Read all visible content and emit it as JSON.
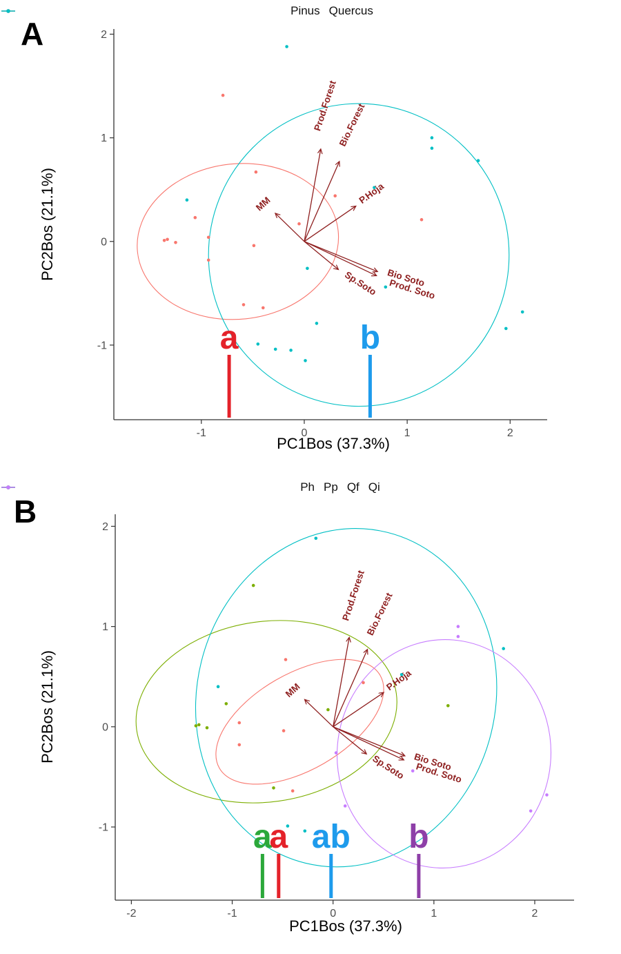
{
  "figure": {
    "panel_a_label": "A",
    "panel_b_label": "B",
    "loadings_color": "#8e1f1f",
    "axis_line_color": "#333333",
    "tick_text_color": "#4d4d4d"
  },
  "chart_data": [
    {
      "type": "scatter",
      "panel_label": "A",
      "xlabel": "PC1Bos (37.3%)",
      "ylabel": "PC2Bos (21.1%)",
      "xlim": [
        -1.85,
        2.36
      ],
      "ylim": [
        -1.72,
        2.05
      ],
      "xticks": [
        -1,
        0,
        1,
        2
      ],
      "yticks": [
        2,
        1,
        0,
        -1
      ],
      "grid": false,
      "legend_position": "top-center",
      "series": [
        {
          "name": "Pinus",
          "color": "#F8766D",
          "points": [
            [
              -0.79,
              1.41
            ],
            [
              -0.47,
              0.67
            ],
            [
              -1.06,
              0.23
            ],
            [
              -1.36,
              0.01
            ],
            [
              -1.33,
              0.02
            ],
            [
              -1.25,
              -0.01
            ],
            [
              -0.93,
              0.04
            ],
            [
              -0.49,
              -0.04
            ],
            [
              -0.05,
              0.17
            ],
            [
              -0.93,
              -0.18
            ],
            [
              0.3,
              0.44
            ],
            [
              1.14,
              0.21
            ],
            [
              -0.59,
              -0.61
            ],
            [
              -0.4,
              -0.64
            ]
          ]
        },
        {
          "name": "Quercus",
          "color": "#00BFC4",
          "points": [
            [
              -0.17,
              1.88
            ],
            [
              -1.14,
              0.4
            ],
            [
              0.03,
              -0.26
            ],
            [
              1.24,
              1.0
            ],
            [
              1.24,
              0.9
            ],
            [
              1.69,
              0.78
            ],
            [
              0.68,
              0.52
            ],
            [
              0.79,
              -0.44
            ],
            [
              2.12,
              -0.68
            ],
            [
              1.96,
              -0.84
            ],
            [
              0.12,
              -0.79
            ],
            [
              -0.45,
              -0.99
            ],
            [
              -0.28,
              -1.04
            ],
            [
              -0.13,
              -1.05
            ],
            [
              0.01,
              -1.15
            ]
          ]
        }
      ],
      "ellipses": [
        {
          "group": "Pinus",
          "color": "#F8766D",
          "cx": -0.645,
          "cy": 0.0,
          "rx": 0.98,
          "ry": 0.75,
          "rot": -6
        },
        {
          "group": "Quercus",
          "color": "#00BFC4",
          "cx": 0.53,
          "cy": -0.13,
          "rx": 1.46,
          "ry": 1.46,
          "rot": 0
        }
      ],
      "loadings": [
        {
          "label": "Prod.Forest",
          "x": 0.16,
          "y": 0.89,
          "lx": 0.23,
          "ly": 1.3,
          "rot": 72
        },
        {
          "label": "Bio.Forest",
          "x": 0.34,
          "y": 0.77,
          "lx": 0.49,
          "ly": 1.11,
          "rot": 64
        },
        {
          "label": "P.Hoja",
          "x": 0.5,
          "y": 0.34,
          "lx": 0.67,
          "ly": 0.44,
          "rot": 36
        },
        {
          "label": "MM",
          "x": -0.28,
          "y": 0.27,
          "lx": -0.38,
          "ly": 0.34,
          "rot": 42
        },
        {
          "label": "Sp.Soto",
          "x": 0.33,
          "y": -0.27,
          "lx": 0.53,
          "ly": -0.43,
          "rot": -33
        },
        {
          "label": "Bio Soto",
          "x": 0.71,
          "y": -0.29,
          "lx": 0.98,
          "ly": -0.38,
          "rot": -17
        },
        {
          "label": "Prod. Soto",
          "x": 0.7,
          "y": -0.33,
          "lx": 1.04,
          "ly": -0.49,
          "rot": -17
        }
      ],
      "letters": [
        {
          "text": "a",
          "color": "#e4222a",
          "x": -0.73
        },
        {
          "text": "b",
          "color": "#1e9bec",
          "x": 0.64
        }
      ]
    },
    {
      "type": "scatter",
      "panel_label": "B",
      "xlabel": "PC1Bos (37.3%)",
      "ylabel": "PC2Bos (21.1%)",
      "xlim": [
        -2.16,
        2.39
      ],
      "ylim": [
        -1.73,
        2.12
      ],
      "xticks": [
        -2,
        -1,
        0,
        1,
        2
      ],
      "yticks": [
        2,
        1,
        0,
        -1
      ],
      "grid": false,
      "legend_position": "top-center",
      "series": [
        {
          "name": "Ph",
          "color": "#F8766D",
          "points": [
            [
              -0.47,
              0.67
            ],
            [
              -0.93,
              0.04
            ],
            [
              -0.49,
              -0.04
            ],
            [
              -0.93,
              -0.18
            ],
            [
              0.3,
              0.44
            ],
            [
              -0.4,
              -0.64
            ]
          ]
        },
        {
          "name": "Pp",
          "color": "#7CAE00",
          "points": [
            [
              -0.79,
              1.41
            ],
            [
              -1.06,
              0.23
            ],
            [
              -1.36,
              0.01
            ],
            [
              -1.33,
              0.02
            ],
            [
              -1.25,
              -0.01
            ],
            [
              -0.05,
              0.17
            ],
            [
              1.14,
              0.21
            ],
            [
              -0.59,
              -0.61
            ]
          ]
        },
        {
          "name": "Qf",
          "color": "#00BFC4",
          "points": [
            [
              -0.17,
              1.88
            ],
            [
              -1.14,
              0.4
            ],
            [
              1.69,
              0.78
            ],
            [
              0.68,
              0.52
            ],
            [
              -0.45,
              -0.99
            ],
            [
              -0.28,
              -1.04
            ],
            [
              0.01,
              -1.15
            ]
          ]
        },
        {
          "name": "Qi",
          "color": "#C77CFF",
          "points": [
            [
              0.03,
              -0.26
            ],
            [
              1.24,
              1.0
            ],
            [
              1.24,
              0.9
            ],
            [
              0.79,
              -0.44
            ],
            [
              2.12,
              -0.68
            ],
            [
              1.96,
              -0.84
            ],
            [
              0.12,
              -0.79
            ],
            [
              -0.13,
              -1.05
            ]
          ]
        }
      ],
      "ellipses": [
        {
          "group": "Ph",
          "color": "#F8766D",
          "cx": -0.33,
          "cy": 0.05,
          "rx": 0.92,
          "ry": 0.48,
          "rot": -30
        },
        {
          "group": "Pp",
          "color": "#7CAE00",
          "cx": -0.66,
          "cy": 0.15,
          "rx": 1.3,
          "ry": 0.9,
          "rot": -8
        },
        {
          "group": "Qf",
          "color": "#00BFC4",
          "cx": 0.13,
          "cy": 0.29,
          "rx": 1.48,
          "ry": 1.7,
          "rot": 14
        },
        {
          "group": "Qi",
          "color": "#C77CFF",
          "cx": 1.1,
          "cy": -0.27,
          "rx": 1.06,
          "ry": 1.14,
          "rot": 5
        }
      ],
      "loadings": [
        {
          "label": "Prod.Forest",
          "x": 0.16,
          "y": 0.89,
          "lx": 0.23,
          "ly": 1.3,
          "rot": 72
        },
        {
          "label": "Bio.Forest",
          "x": 0.34,
          "y": 0.77,
          "lx": 0.49,
          "ly": 1.11,
          "rot": 64
        },
        {
          "label": "P.Hoja",
          "x": 0.5,
          "y": 0.34,
          "lx": 0.67,
          "ly": 0.44,
          "rot": 36
        },
        {
          "label": "MM",
          "x": -0.28,
          "y": 0.27,
          "lx": -0.38,
          "ly": 0.34,
          "rot": 42
        },
        {
          "label": "Sp.Soto",
          "x": 0.33,
          "y": -0.27,
          "lx": 0.53,
          "ly": -0.43,
          "rot": -33
        },
        {
          "label": "Bio Soto",
          "x": 0.71,
          "y": -0.29,
          "lx": 0.98,
          "ly": -0.38,
          "rot": -17
        },
        {
          "label": "Prod. Soto",
          "x": 0.7,
          "y": -0.33,
          "lx": 1.04,
          "ly": -0.49,
          "rot": -17
        }
      ],
      "letters": [
        {
          "text": "a",
          "color": "#2ba83a",
          "x": -0.7
        },
        {
          "text": "a",
          "color": "#e4222a",
          "x": -0.54
        },
        {
          "text": "ab",
          "color": "#1e9bec",
          "x": -0.02
        },
        {
          "text": "b",
          "color": "#8e3fa8",
          "x": 0.85
        }
      ]
    }
  ]
}
